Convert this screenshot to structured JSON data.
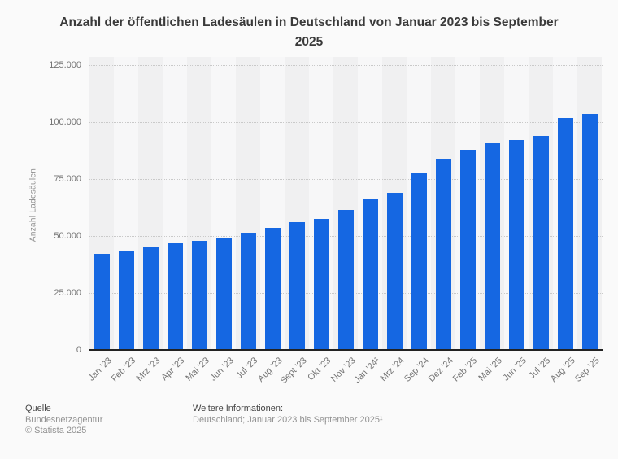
{
  "chart_data": {
    "type": "bar",
    "title": "Anzahl der öffentlichen Ladesäulen in Deutschland von Januar 2023 bis September 2025",
    "xlabel": "",
    "ylabel": "Anzahl Ladesäulen",
    "ylim": [
      0,
      125000
    ],
    "grid": true,
    "legend": "none",
    "bar_color": "#1567e2",
    "categories": [
      "Jan ’23",
      "Feb ’23",
      "Mrz ’23",
      "Apr ’23",
      "Mai ’23",
      "Jun ’23",
      "Jul ’23",
      "Aug ’23",
      "Sept ’23",
      "Okt ’23",
      "Nov ’23",
      "Jan ’24¹",
      "Mrz ’24",
      "Sep ’24",
      "Dez ’24",
      "Feb ’25",
      "Mai ’25",
      "Jun ’25",
      "Jul ’25",
      "Aug ’25",
      "Sep ’25"
    ],
    "values": [
      42000,
      43600,
      44900,
      46700,
      48000,
      49000,
      51400,
      53500,
      56200,
      57500,
      61300,
      66000,
      68800,
      77700,
      83800,
      88000,
      90600,
      92100,
      94000,
      101800,
      103500
    ],
    "yticks": [
      {
        "value": 0,
        "label": "0"
      },
      {
        "value": 25000,
        "label": "25.000"
      },
      {
        "value": 50000,
        "label": "50.000"
      },
      {
        "value": 75000,
        "label": "75.000"
      },
      {
        "value": 100000,
        "label": "100.000"
      },
      {
        "value": 125000,
        "label": "125.000"
      }
    ]
  },
  "footer": {
    "source_label": "Quelle",
    "source": "Bundesnetzagentur",
    "copyright": "© Statista 2025",
    "info_label": "Weitere Informationen:",
    "info": "Deutschland; Januar 2023 bis September 2025¹"
  }
}
